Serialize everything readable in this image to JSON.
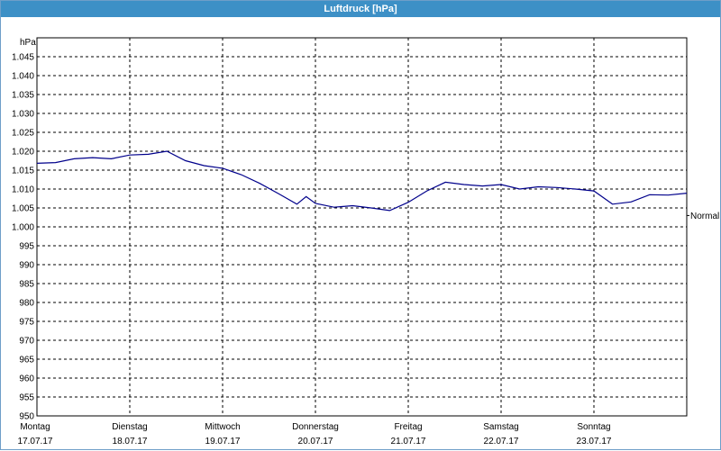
{
  "window": {
    "title": "Luftdruck [hPa]"
  },
  "chart_data": {
    "type": "line",
    "title": "Luftdruck [hPa]",
    "ylabel": "hPa",
    "ylim": [
      950,
      1050
    ],
    "yticks": [
      "950",
      "955",
      "960",
      "965",
      "970",
      "975",
      "980",
      "985",
      "990",
      "995",
      "1.000",
      "1.005",
      "1.010",
      "1.015",
      "1.020",
      "1.025",
      "1.030",
      "1.035",
      "1.040",
      "1.045"
    ],
    "ytick_values": [
      950,
      955,
      960,
      965,
      970,
      975,
      980,
      985,
      990,
      995,
      1000,
      1005,
      1010,
      1015,
      1020,
      1025,
      1030,
      1035,
      1040,
      1045
    ],
    "xlim": [
      0,
      7
    ],
    "x_categories": [
      {
        "day": "Montag",
        "date": "17.07.17"
      },
      {
        "day": "Dienstag",
        "date": "18.07.17"
      },
      {
        "day": "Mittwoch",
        "date": "19.07.17"
      },
      {
        "day": "Donnerstag",
        "date": "20.07.17"
      },
      {
        "day": "Freitag",
        "date": "21.07.17"
      },
      {
        "day": "Samstag",
        "date": "22.07.17"
      },
      {
        "day": "Sonntag",
        "date": "23.07.17"
      }
    ],
    "grid": true,
    "reference_line": {
      "label": "Normal",
      "value": 1003
    },
    "series": [
      {
        "color": "#00008b",
        "x": [
          0,
          0.2,
          0.4,
          0.6,
          0.8,
          1.0,
          1.2,
          1.4,
          1.6,
          1.8,
          2.0,
          2.2,
          2.4,
          2.6,
          2.8,
          2.9,
          3.0,
          3.2,
          3.4,
          3.6,
          3.8,
          4.0,
          4.2,
          4.4,
          4.6,
          4.8,
          5.0,
          5.2,
          5.4,
          5.6,
          5.8,
          6.0,
          6.2,
          6.4,
          6.6,
          6.8,
          7.0
        ],
        "y": [
          1016.8,
          1017.0,
          1018.0,
          1018.3,
          1018.0,
          1019.0,
          1019.2,
          1020.0,
          1017.5,
          1016.2,
          1015.5,
          1013.8,
          1011.5,
          1008.8,
          1006.0,
          1008.0,
          1006.2,
          1005.2,
          1005.6,
          1005.0,
          1004.3,
          1006.5,
          1009.5,
          1011.8,
          1011.2,
          1010.8,
          1011.2,
          1010.0,
          1010.6,
          1010.4,
          1010.0,
          1009.5,
          1006.0,
          1006.6,
          1008.5,
          1008.4,
          1008.9
        ]
      }
    ]
  }
}
